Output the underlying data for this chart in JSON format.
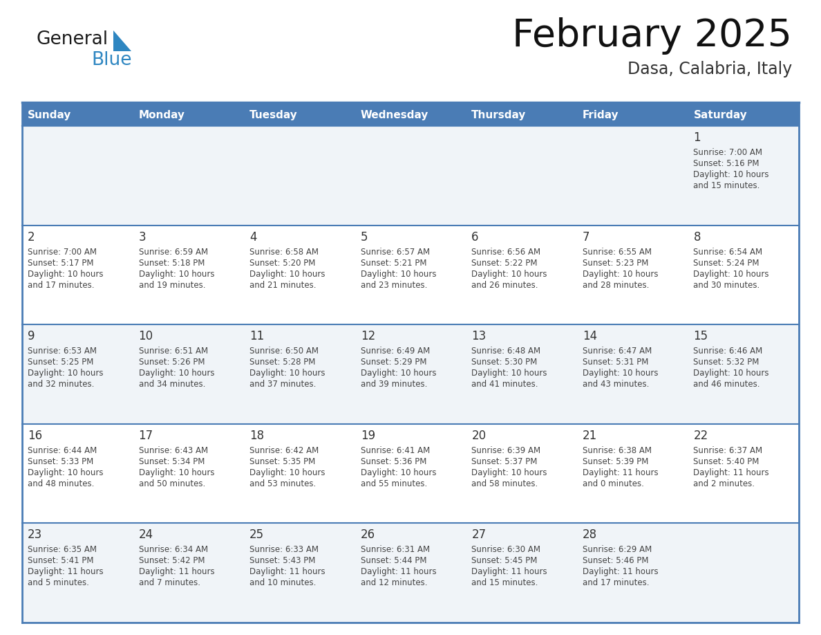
{
  "title": "February 2025",
  "subtitle": "Dasa, Calabria, Italy",
  "days_of_week": [
    "Sunday",
    "Monday",
    "Tuesday",
    "Wednesday",
    "Thursday",
    "Friday",
    "Saturday"
  ],
  "header_bg": "#4a7cb5",
  "header_text": "#ffffff",
  "cell_bg_odd": "#f0f4f8",
  "cell_bg_even": "#ffffff",
  "border_color": "#4a7cb5",
  "text_color": "#444444",
  "day_num_color": "#333333",
  "logo_black": "#1a1a1a",
  "logo_blue": "#2e86c1",
  "triangle_blue": "#2e86c1",
  "calendar_data": [
    [
      null,
      null,
      null,
      null,
      null,
      null,
      {
        "day": 1,
        "sunrise": "7:00 AM",
        "sunset": "5:16 PM",
        "daylight_line1": "Daylight: 10 hours",
        "daylight_line2": "and 15 minutes."
      }
    ],
    [
      {
        "day": 2,
        "sunrise": "7:00 AM",
        "sunset": "5:17 PM",
        "daylight_line1": "Daylight: 10 hours",
        "daylight_line2": "and 17 minutes."
      },
      {
        "day": 3,
        "sunrise": "6:59 AM",
        "sunset": "5:18 PM",
        "daylight_line1": "Daylight: 10 hours",
        "daylight_line2": "and 19 minutes."
      },
      {
        "day": 4,
        "sunrise": "6:58 AM",
        "sunset": "5:20 PM",
        "daylight_line1": "Daylight: 10 hours",
        "daylight_line2": "and 21 minutes."
      },
      {
        "day": 5,
        "sunrise": "6:57 AM",
        "sunset": "5:21 PM",
        "daylight_line1": "Daylight: 10 hours",
        "daylight_line2": "and 23 minutes."
      },
      {
        "day": 6,
        "sunrise": "6:56 AM",
        "sunset": "5:22 PM",
        "daylight_line1": "Daylight: 10 hours",
        "daylight_line2": "and 26 minutes."
      },
      {
        "day": 7,
        "sunrise": "6:55 AM",
        "sunset": "5:23 PM",
        "daylight_line1": "Daylight: 10 hours",
        "daylight_line2": "and 28 minutes."
      },
      {
        "day": 8,
        "sunrise": "6:54 AM",
        "sunset": "5:24 PM",
        "daylight_line1": "Daylight: 10 hours",
        "daylight_line2": "and 30 minutes."
      }
    ],
    [
      {
        "day": 9,
        "sunrise": "6:53 AM",
        "sunset": "5:25 PM",
        "daylight_line1": "Daylight: 10 hours",
        "daylight_line2": "and 32 minutes."
      },
      {
        "day": 10,
        "sunrise": "6:51 AM",
        "sunset": "5:26 PM",
        "daylight_line1": "Daylight: 10 hours",
        "daylight_line2": "and 34 minutes."
      },
      {
        "day": 11,
        "sunrise": "6:50 AM",
        "sunset": "5:28 PM",
        "daylight_line1": "Daylight: 10 hours",
        "daylight_line2": "and 37 minutes."
      },
      {
        "day": 12,
        "sunrise": "6:49 AM",
        "sunset": "5:29 PM",
        "daylight_line1": "Daylight: 10 hours",
        "daylight_line2": "and 39 minutes."
      },
      {
        "day": 13,
        "sunrise": "6:48 AM",
        "sunset": "5:30 PM",
        "daylight_line1": "Daylight: 10 hours",
        "daylight_line2": "and 41 minutes."
      },
      {
        "day": 14,
        "sunrise": "6:47 AM",
        "sunset": "5:31 PM",
        "daylight_line1": "Daylight: 10 hours",
        "daylight_line2": "and 43 minutes."
      },
      {
        "day": 15,
        "sunrise": "6:46 AM",
        "sunset": "5:32 PM",
        "daylight_line1": "Daylight: 10 hours",
        "daylight_line2": "and 46 minutes."
      }
    ],
    [
      {
        "day": 16,
        "sunrise": "6:44 AM",
        "sunset": "5:33 PM",
        "daylight_line1": "Daylight: 10 hours",
        "daylight_line2": "and 48 minutes."
      },
      {
        "day": 17,
        "sunrise": "6:43 AM",
        "sunset": "5:34 PM",
        "daylight_line1": "Daylight: 10 hours",
        "daylight_line2": "and 50 minutes."
      },
      {
        "day": 18,
        "sunrise": "6:42 AM",
        "sunset": "5:35 PM",
        "daylight_line1": "Daylight: 10 hours",
        "daylight_line2": "and 53 minutes."
      },
      {
        "day": 19,
        "sunrise": "6:41 AM",
        "sunset": "5:36 PM",
        "daylight_line1": "Daylight: 10 hours",
        "daylight_line2": "and 55 minutes."
      },
      {
        "day": 20,
        "sunrise": "6:39 AM",
        "sunset": "5:37 PM",
        "daylight_line1": "Daylight: 10 hours",
        "daylight_line2": "and 58 minutes."
      },
      {
        "day": 21,
        "sunrise": "6:38 AM",
        "sunset": "5:39 PM",
        "daylight_line1": "Daylight: 11 hours",
        "daylight_line2": "and 0 minutes."
      },
      {
        "day": 22,
        "sunrise": "6:37 AM",
        "sunset": "5:40 PM",
        "daylight_line1": "Daylight: 11 hours",
        "daylight_line2": "and 2 minutes."
      }
    ],
    [
      {
        "day": 23,
        "sunrise": "6:35 AM",
        "sunset": "5:41 PM",
        "daylight_line1": "Daylight: 11 hours",
        "daylight_line2": "and 5 minutes."
      },
      {
        "day": 24,
        "sunrise": "6:34 AM",
        "sunset": "5:42 PM",
        "daylight_line1": "Daylight: 11 hours",
        "daylight_line2": "and 7 minutes."
      },
      {
        "day": 25,
        "sunrise": "6:33 AM",
        "sunset": "5:43 PM",
        "daylight_line1": "Daylight: 11 hours",
        "daylight_line2": "and 10 minutes."
      },
      {
        "day": 26,
        "sunrise": "6:31 AM",
        "sunset": "5:44 PM",
        "daylight_line1": "Daylight: 11 hours",
        "daylight_line2": "and 12 minutes."
      },
      {
        "day": 27,
        "sunrise": "6:30 AM",
        "sunset": "5:45 PM",
        "daylight_line1": "Daylight: 11 hours",
        "daylight_line2": "and 15 minutes."
      },
      {
        "day": 28,
        "sunrise": "6:29 AM",
        "sunset": "5:46 PM",
        "daylight_line1": "Daylight: 11 hours",
        "daylight_line2": "and 17 minutes."
      },
      null
    ]
  ]
}
